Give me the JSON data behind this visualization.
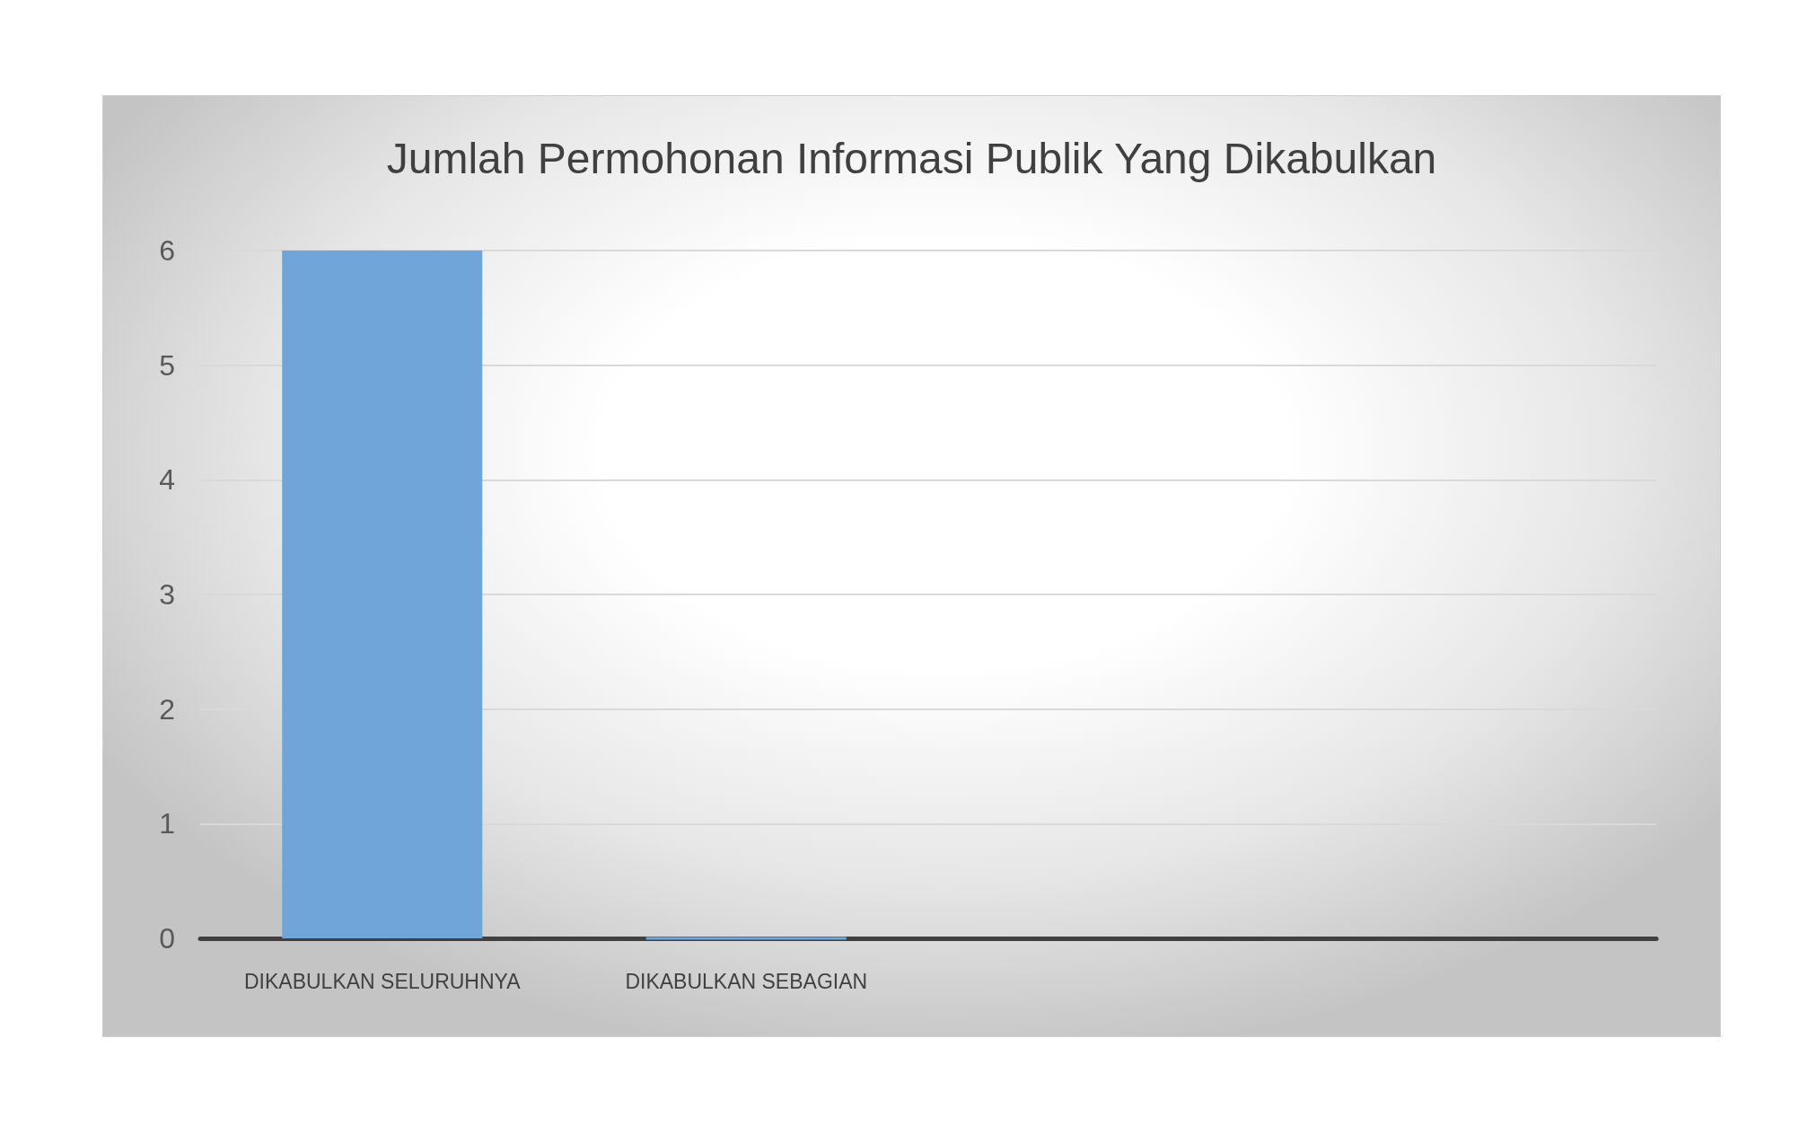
{
  "chart_data": {
    "type": "bar",
    "title": "Jumlah Permohonan Informasi Publik Yang Dikabulkan",
    "categories": [
      "DIKABULKAN SELURUHNYA",
      "DIKABULKAN SEBAGIAN",
      null,
      null
    ],
    "values": [
      6,
      0,
      null,
      null
    ],
    "color": "#6fa5d8",
    "ylim": [
      0,
      6
    ],
    "yticks": [
      0,
      1,
      2,
      3,
      4,
      5,
      6
    ],
    "grid": "y"
  }
}
